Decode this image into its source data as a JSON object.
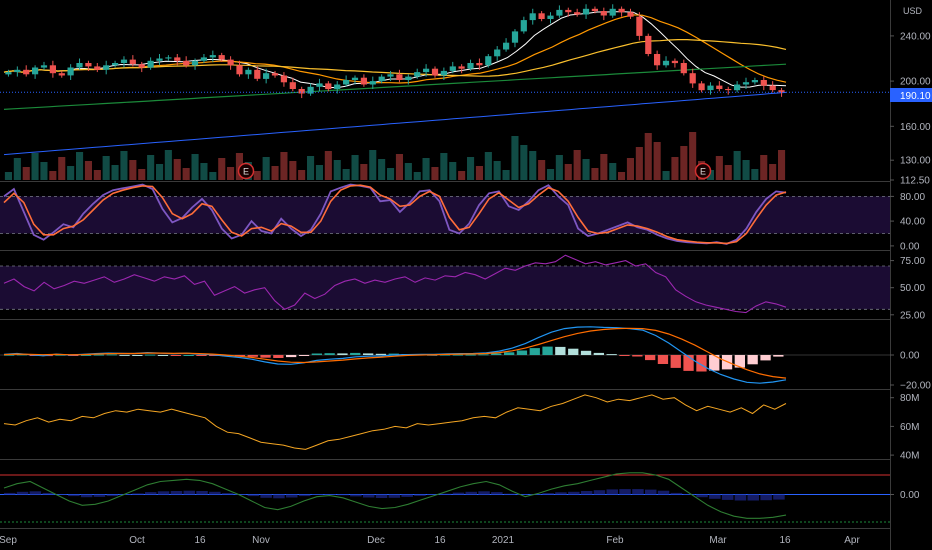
{
  "currency": "USD",
  "last_price": "190.10",
  "x_axis": {
    "labels": [
      "Sep",
      "Oct",
      "16",
      "Nov",
      "Dec",
      "16",
      "2021",
      "Feb",
      "Mar",
      "16",
      "Apr"
    ]
  },
  "colors": {
    "up": "#26a69a",
    "down": "#ef5350",
    "stoch_k": "#7e57c2",
    "stoch_d": "#ff6d3a",
    "rsi": "#9c27b0",
    "macd": "#2196f3",
    "signal": "#ff6d00",
    "obv": "#f5a623",
    "ma_white": "#ffffff",
    "ma_orange": "#ff9800",
    "ma_yellow": "#fbc02d",
    "ma_green": "#1b8a3a",
    "ma_blue": "#2962ff",
    "earnings": "#d32f2f"
  },
  "earnings_markers": [
    "E",
    "E"
  ],
  "chart_data": [
    {
      "type": "candlestick",
      "panel": "price",
      "y_ticks": [
        "240.00",
        "200.00",
        "160.00",
        "130.00",
        "112.50"
      ],
      "ylim": [
        112.5,
        270
      ],
      "closes": [
        208,
        210,
        206,
        212,
        214,
        207,
        205,
        212,
        216,
        213,
        210,
        214,
        216,
        219,
        215,
        212,
        218,
        220,
        221,
        218,
        214,
        218,
        221,
        223,
        219,
        214,
        206,
        210,
        202,
        207,
        205,
        199,
        193,
        189,
        195,
        198,
        193,
        197,
        201,
        203,
        197,
        200,
        204,
        206,
        201,
        204,
        208,
        211,
        205,
        209,
        213,
        211,
        216,
        214,
        222,
        228,
        234,
        244,
        254,
        260,
        255,
        258,
        263,
        261,
        259,
        264,
        262,
        258,
        264,
        261,
        257,
        240,
        224,
        214,
        218,
        216,
        207,
        198,
        192,
        196,
        193,
        192,
        197,
        199,
        201,
        196,
        192,
        190.1
      ],
      "price_line": 190.1
    },
    {
      "type": "line",
      "panel": "stochastic",
      "y_ticks": [
        "80.00",
        "40.00",
        "0.00"
      ],
      "ylim": [
        -5,
        100
      ],
      "bands": [
        80,
        20
      ],
      "series": [
        {
          "name": "%K",
          "values": [
            80,
            92,
            55,
            18,
            10,
            22,
            35,
            30,
            52,
            68,
            82,
            90,
            93,
            96,
            99,
            92,
            60,
            38,
            45,
            62,
            76,
            58,
            28,
            12,
            18,
            40,
            24,
            20,
            44,
            28,
            16,
            26,
            52,
            88,
            94,
            99,
            97,
            94,
            72,
            74,
            55,
            70,
            88,
            90,
            72,
            26,
            20,
            36,
            66,
            85,
            88,
            64,
            58,
            72,
            90,
            98,
            80,
            66,
            28,
            16,
            20,
            26,
            32,
            38,
            30,
            26,
            18,
            12,
            8,
            6,
            5,
            4,
            6,
            3,
            10,
            28,
            55,
            76,
            88,
            86
          ]
        },
        {
          "name": "%D",
          "values": [
            70,
            85,
            70,
            35,
            18,
            18,
            28,
            32,
            42,
            58,
            74,
            85,
            90,
            94,
            97,
            96,
            78,
            52,
            44,
            52,
            68,
            64,
            42,
            22,
            16,
            28,
            30,
            24,
            36,
            32,
            22,
            22,
            40,
            72,
            90,
            97,
            98,
            95,
            82,
            76,
            64,
            66,
            80,
            88,
            80,
            46,
            26,
            30,
            52,
            76,
            86,
            74,
            62,
            68,
            82,
            94,
            88,
            72,
            46,
            24,
            20,
            22,
            28,
            34,
            32,
            28,
            22,
            15,
            10,
            8,
            6,
            5,
            5,
            4,
            7,
            20,
            44,
            66,
            82,
            87
          ]
        }
      ]
    },
    {
      "type": "line",
      "panel": "rsi",
      "y_ticks": [
        "75.00",
        "50.00",
        "25.00"
      ],
      "ylim": [
        22,
        82
      ],
      "bands": [
        70,
        30
      ],
      "series": [
        {
          "name": "RSI",
          "values": [
            54,
            58,
            51,
            47,
            55,
            49,
            52,
            56,
            54,
            57,
            60,
            55,
            58,
            62,
            59,
            56,
            60,
            58,
            61,
            53,
            56,
            43,
            47,
            51,
            45,
            48,
            50,
            38,
            30,
            34,
            45,
            40,
            44,
            52,
            56,
            58,
            54,
            57,
            55,
            58,
            60,
            55,
            59,
            57,
            61,
            60,
            64,
            62,
            58,
            63,
            68,
            66,
            70,
            73,
            72,
            74,
            80,
            76,
            72,
            74,
            71,
            73,
            75,
            70,
            72,
            64,
            60,
            48,
            42,
            37,
            34,
            32,
            30,
            28,
            27,
            33,
            37,
            35,
            32
          ]
        }
      ]
    },
    {
      "type": "line",
      "panel": "macd",
      "y_ticks": [
        "0.00",
        "−20.00"
      ],
      "ylim": [
        -22,
        22
      ],
      "series": [
        {
          "name": "MACD",
          "values": [
            0.5,
            1,
            0.2,
            -0.5,
            0.6,
            0,
            0.4,
            0.9,
            1.3,
            1.1,
            1,
            1.6,
            1.3,
            0.9,
            1.2,
            0.6,
            0.2,
            -0.8,
            -1.6,
            -2.8,
            -4.6,
            -6,
            -6.2,
            -5.2,
            -3.6,
            -2.8,
            -2.3,
            -1.2,
            -0.8,
            -0.6,
            0.1,
            0.3,
            0.4,
            0.5,
            0.7,
            0.9,
            1,
            1.5,
            2.6,
            4.6,
            7.6,
            11.6,
            15.2,
            17.6,
            18.6,
            18.8,
            18.4,
            18.2,
            17.6,
            16.6,
            13,
            8,
            2,
            -4,
            -9,
            -13,
            -16,
            -18.2,
            -18.8,
            -18,
            -16.5
          ]
        },
        {
          "name": "Signal",
          "values": [
            0.3,
            0.6,
            0.5,
            0.2,
            0.4,
            0.2,
            0.3,
            0.6,
            0.9,
            1,
            1,
            1.3,
            1.3,
            1.1,
            1.2,
            0.9,
            0.6,
            0,
            -0.8,
            -1.6,
            -2.8,
            -4,
            -4.8,
            -5,
            -4.6,
            -4,
            -3.4,
            -2.6,
            -1.9,
            -1.4,
            -0.8,
            -0.3,
            0,
            0.2,
            0.4,
            0.6,
            0.7,
            1,
            1.6,
            2.8,
            4.6,
            7,
            9.6,
            12.2,
            14.4,
            16,
            17,
            17.6,
            17.8,
            17.6,
            16.4,
            14,
            10.6,
            6.6,
            2,
            -2.6,
            -6.4,
            -9.8,
            -12.6,
            -14.4,
            -15.4
          ]
        },
        {
          "name": "Histogram",
          "values": [
            0.2,
            0.4,
            -0.3,
            -0.7,
            0.2,
            -0.2,
            0.1,
            0.3,
            0.4,
            0.1,
            0,
            0.3,
            0,
            -0.2,
            0,
            -0.3,
            -0.4,
            -0.8,
            -0.8,
            -1.2,
            -1.8,
            -2,
            -1.4,
            -0.2,
            1,
            1.2,
            1.1,
            1.4,
            1.1,
            0.8,
            0.9,
            0.6,
            0.4,
            0.3,
            0.3,
            0.3,
            0.3,
            0.5,
            1,
            1.8,
            3,
            4.6,
            5.6,
            5.4,
            4.2,
            2.8,
            1.4,
            0.6,
            -0.2,
            -1,
            -3.4,
            -6,
            -8.6,
            -10.6,
            -11,
            -10.4,
            -9.6,
            -8.4,
            -6.2,
            -3.6,
            -1.1
          ]
        }
      ]
    },
    {
      "type": "line",
      "panel": "obv",
      "y_ticks": [
        "80M",
        "60M",
        "40M"
      ],
      "ylim": [
        38,
        84
      ],
      "series": [
        {
          "name": "OBV",
          "values": [
            62,
            61,
            64,
            66,
            63,
            65,
            64,
            67,
            66,
            69,
            71,
            70,
            72,
            71,
            70,
            72,
            70,
            68,
            66,
            60,
            56,
            55,
            52,
            49,
            48,
            47,
            45,
            44,
            47,
            50,
            51,
            53,
            55,
            57,
            58,
            60,
            59,
            62,
            61,
            62,
            63,
            64,
            66,
            67,
            66,
            70,
            73,
            72,
            71,
            74,
            76,
            79,
            82,
            80,
            77,
            79,
            78,
            80,
            82,
            79,
            80,
            75,
            71,
            74,
            72,
            70,
            73,
            69,
            75,
            72,
            76
          ]
        }
      ]
    },
    {
      "type": "line",
      "panel": "oscillator",
      "y_ticks": [
        "0.00"
      ],
      "ylim": [
        -30,
        30
      ],
      "series": [
        {
          "name": "Line",
          "values": [
            6,
            10,
            12,
            6,
            0,
            -6,
            -10,
            -9,
            -6,
            -1,
            4,
            9,
            12,
            13,
            14,
            13,
            10,
            5,
            0,
            -6,
            -12,
            -14,
            -11,
            -6,
            -2,
            -1,
            -3,
            -7,
            -11,
            -13,
            -12,
            -9,
            -5,
            -1,
            3,
            7,
            10,
            12,
            9,
            3,
            -2,
            1,
            5,
            8,
            10,
            13,
            16,
            19,
            20,
            20,
            18,
            14,
            6,
            -2,
            -10,
            -16,
            -20,
            -22,
            -22,
            -21,
            -19
          ]
        }
      ]
    }
  ]
}
